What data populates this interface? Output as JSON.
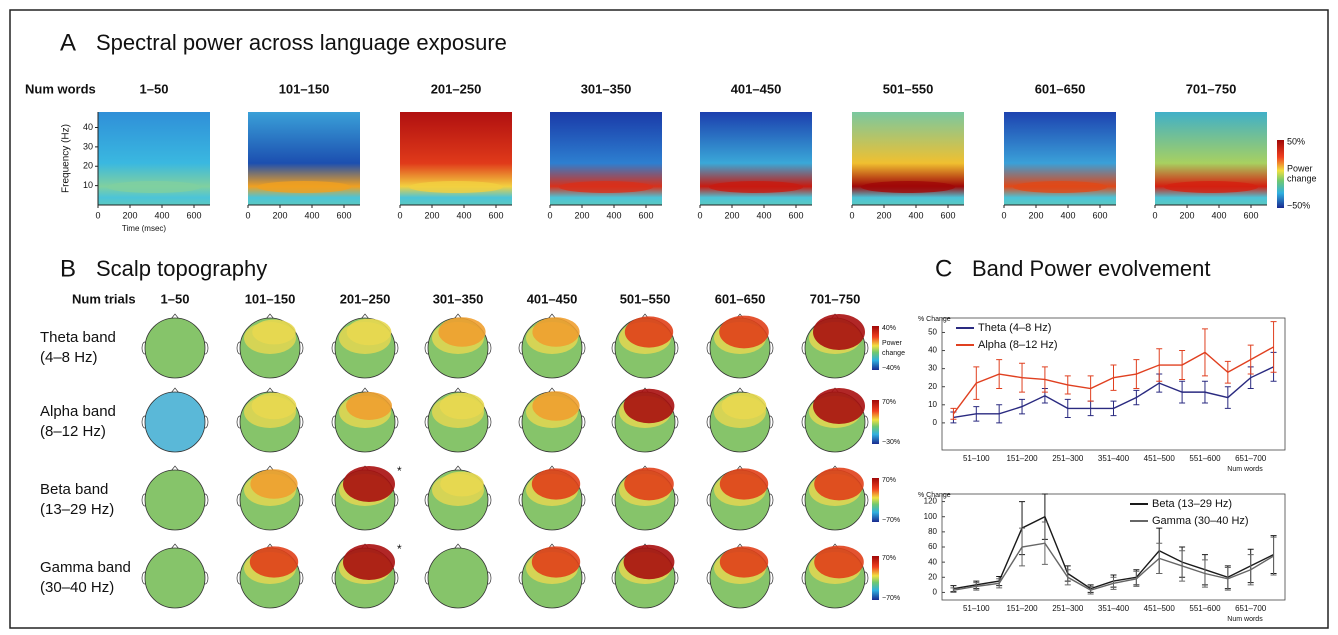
{
  "panel_a": {
    "letter": "A",
    "title": "Spectral power across language exposure",
    "row_label": "Num words",
    "columns": [
      "1–50",
      "101–150",
      "201–250",
      "301–350",
      "401–450",
      "501–550",
      "601–650",
      "701–750"
    ],
    "y_axis_label": "Frequency (Hz)",
    "x_axis_label": "Time (msec)",
    "xlim": [
      0,
      700
    ],
    "xticks": [
      0,
      200,
      400,
      600
    ],
    "ylim": [
      0,
      48
    ],
    "yticks": [
      10,
      20,
      30,
      40
    ],
    "colorbar": {
      "max_label": "50%",
      "title_lines": [
        "Power",
        "change"
      ],
      "min_label": "−50%"
    }
  },
  "panel_b": {
    "letter": "B",
    "title": "Scalp topography",
    "row_label": "Num trials",
    "columns": [
      "1–50",
      "101–150",
      "201–250",
      "301–350",
      "401–450",
      "501–550",
      "601–650",
      "701–750"
    ],
    "rows": [
      {
        "name": "Theta band",
        "range": "(4–8 Hz)",
        "colorbar": {
          "max_label": "40%",
          "title_lines": [
            "Power",
            "change"
          ],
          "min_label": "−40%"
        }
      },
      {
        "name": "Alpha band",
        "range": "(8–12 Hz)",
        "colorbar": {
          "max_label": "70%",
          "min_label": "−30%"
        }
      },
      {
        "name": "Beta band",
        "range": "(13–29 Hz)",
        "marker": "*",
        "colorbar": {
          "max_label": "70%",
          "min_label": "−70%"
        }
      },
      {
        "name": "Gamma band",
        "range": "(30–40 Hz)",
        "marker": "*",
        "colorbar": {
          "max_label": "70%",
          "min_label": "−70%"
        }
      }
    ]
  },
  "panel_c": {
    "letter": "C",
    "title": "Band Power evolvement"
  },
  "chart_data": [
    {
      "type": "line",
      "y_label": "% Change",
      "x_label": "Num words",
      "legend": "upper left",
      "categories": [
        null,
        "51–100",
        null,
        "151–200",
        null,
        "251–300",
        null,
        "351–400",
        null,
        "451–500",
        null,
        "551–600",
        null,
        "651–700",
        null
      ],
      "ylim": [
        -15,
        58
      ],
      "yticks": [
        0,
        10,
        20,
        30,
        40,
        50
      ],
      "series": [
        {
          "name": "Theta (4–8 Hz)",
          "color": "#2a2a80",
          "values": [
            3,
            5,
            5,
            9,
            15,
            8,
            8,
            8,
            14,
            22,
            17,
            17,
            14,
            25,
            31
          ],
          "errors": [
            3,
            4,
            5,
            4,
            4,
            5,
            4,
            4,
            4,
            5,
            6,
            6,
            6,
            6,
            8
          ]
        },
        {
          "name": "Alpha (8–12 Hz)",
          "color": "#e04020",
          "values": [
            5,
            22,
            27,
            25,
            24,
            21,
            19,
            25,
            27,
            32,
            32,
            39,
            28,
            35,
            42
          ],
          "errors": [
            3,
            9,
            8,
            8,
            7,
            5,
            7,
            7,
            8,
            9,
            8,
            13,
            6,
            8,
            14
          ]
        }
      ]
    },
    {
      "type": "line",
      "y_label": "% Change",
      "x_label": "Num words",
      "legend": "upper right",
      "categories": [
        null,
        "51–100",
        null,
        "151–200",
        null,
        "251–300",
        null,
        "351–400",
        null,
        "451–500",
        null,
        "551–600",
        null,
        "651–700",
        null
      ],
      "ylim": [
        -10,
        130
      ],
      "yticks": [
        0,
        20,
        40,
        60,
        80,
        100,
        120
      ],
      "series": [
        {
          "name": "Beta (13–29 Hz)",
          "color": "#1a1a1a",
          "values": [
            5,
            10,
            15,
            85,
            100,
            25,
            5,
            15,
            20,
            55,
            40,
            30,
            20,
            35,
            50
          ],
          "errors": [
            4,
            5,
            6,
            35,
            30,
            10,
            5,
            8,
            10,
            30,
            20,
            20,
            15,
            22,
            25
          ]
        },
        {
          "name": "Gamma (30–40 Hz)",
          "color": "#666666",
          "values": [
            3,
            8,
            12,
            60,
            65,
            20,
            3,
            12,
            18,
            45,
            35,
            25,
            18,
            30,
            48
          ],
          "errors": [
            3,
            5,
            6,
            25,
            28,
            10,
            5,
            8,
            10,
            20,
            20,
            18,
            15,
            20,
            25
          ]
        }
      ]
    }
  ]
}
